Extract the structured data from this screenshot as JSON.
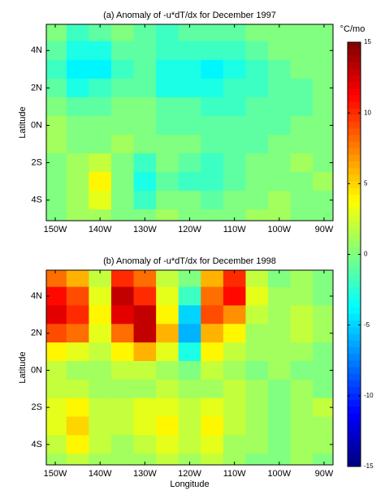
{
  "chart_data": [
    {
      "type": "heatmap",
      "title": "(a) Anomaly of -u*dT/dx for December 1997",
      "ylabel": "Latitude",
      "x": [
        -150,
        -145,
        -140,
        -135,
        -130,
        -125,
        -120,
        -115,
        -110,
        -105,
        -100,
        -95,
        -90
      ],
      "y": [
        5,
        4,
        3,
        2,
        1,
        0,
        -1,
        -2,
        -3,
        -4,
        -5
      ],
      "z": [
        [
          0,
          -2,
          -1,
          0,
          -1,
          -2,
          -1,
          -1,
          -1,
          0,
          0,
          0,
          0
        ],
        [
          -1,
          -3,
          -3,
          -1,
          -1,
          -2,
          -2,
          -2,
          -2,
          -1,
          0,
          0,
          0
        ],
        [
          -2,
          -4,
          -4,
          -2,
          -1,
          -3,
          -3,
          -4,
          -3,
          -2,
          -1,
          0,
          0
        ],
        [
          -1,
          -3,
          -2,
          -1,
          -1,
          -3,
          -3,
          -3,
          -2,
          -2,
          -1,
          -1,
          0
        ],
        [
          0,
          -1,
          -1,
          0,
          0,
          -1,
          -1,
          -2,
          -2,
          -1,
          -1,
          -1,
          0
        ],
        [
          1,
          0,
          0,
          0,
          0,
          -1,
          -1,
          -1,
          -1,
          -1,
          -1,
          0,
          0
        ],
        [
          1,
          0,
          0,
          1,
          0,
          0,
          0,
          -1,
          -1,
          -1,
          0,
          0,
          0
        ],
        [
          0,
          1,
          2,
          0,
          -2,
          0,
          -1,
          -2,
          -1,
          0,
          0,
          1,
          0
        ],
        [
          0,
          1,
          4,
          0,
          -3,
          -1,
          -2,
          -2,
          -1,
          0,
          0,
          0,
          1
        ],
        [
          0,
          1,
          3,
          0,
          -2,
          0,
          0,
          -1,
          0,
          0,
          1,
          0,
          0
        ],
        [
          0,
          1,
          1,
          0,
          0,
          1,
          0,
          0,
          0,
          1,
          1,
          0,
          0
        ]
      ],
      "xlim": [
        -152,
        -88
      ],
      "ylim": [
        -5.1,
        5.4
      ],
      "xticks": [
        {
          "value": -150,
          "label": "150W"
        },
        {
          "value": -140,
          "label": "140W"
        },
        {
          "value": -130,
          "label": "130W"
        },
        {
          "value": -120,
          "label": "120W"
        },
        {
          "value": -110,
          "label": "110W"
        },
        {
          "value": -100,
          "label": "100W"
        },
        {
          "value": -90,
          "label": "90W"
        }
      ],
      "yticks": [
        {
          "value": 4,
          "label": "4N"
        },
        {
          "value": 2,
          "label": "2N"
        },
        {
          "value": 0,
          "label": "0N"
        },
        {
          "value": -2,
          "label": "2S"
        },
        {
          "value": -4,
          "label": "4S"
        }
      ]
    },
    {
      "type": "heatmap",
      "title": "(b) Anomaly of -u*dT/dx for December 1998",
      "ylabel": "Latitude",
      "xlabel": "Longitude",
      "x": [
        -150,
        -145,
        -140,
        -135,
        -130,
        -125,
        -120,
        -115,
        -110,
        -105,
        -100,
        -95,
        -90
      ],
      "y": [
        5,
        4,
        3,
        2,
        1,
        0,
        -1,
        -2,
        -3,
        -4,
        -5
      ],
      "z": [
        [
          8,
          6,
          2,
          10,
          8,
          2,
          0,
          6,
          10,
          2,
          0,
          1,
          0
        ],
        [
          11,
          9,
          3,
          13,
          10,
          3,
          -2,
          8,
          11,
          3,
          1,
          1,
          0
        ],
        [
          12,
          10,
          4,
          12,
          13,
          4,
          -5,
          9,
          7,
          2,
          1,
          2,
          1
        ],
        [
          9,
          8,
          3,
          8,
          13,
          6,
          -6,
          6,
          4,
          1,
          1,
          2,
          1
        ],
        [
          4,
          3,
          2,
          4,
          6,
          3,
          -3,
          4,
          2,
          1,
          1,
          1,
          0
        ],
        [
          2,
          1,
          1,
          2,
          2,
          1,
          0,
          2,
          1,
          0,
          1,
          0,
          0
        ],
        [
          2,
          2,
          1,
          1,
          1,
          2,
          1,
          1,
          2,
          1,
          0,
          1,
          0
        ],
        [
          3,
          4,
          2,
          2,
          3,
          3,
          2,
          3,
          2,
          1,
          0,
          1,
          2
        ],
        [
          3,
          5,
          2,
          2,
          3,
          4,
          2,
          4,
          2,
          1,
          0,
          1,
          1
        ],
        [
          2,
          4,
          2,
          1,
          2,
          3,
          2,
          3,
          1,
          1,
          0,
          1,
          1
        ],
        [
          1,
          2,
          1,
          1,
          1,
          2,
          1,
          2,
          1,
          0,
          0,
          1,
          0
        ]
      ],
      "xlim": [
        -152,
        -88
      ],
      "ylim": [
        -5.1,
        5.4
      ],
      "xticks": [
        {
          "value": -150,
          "label": "150W"
        },
        {
          "value": -140,
          "label": "140W"
        },
        {
          "value": -130,
          "label": "130W"
        },
        {
          "value": -120,
          "label": "120W"
        },
        {
          "value": -110,
          "label": "110W"
        },
        {
          "value": -100,
          "label": "100W"
        },
        {
          "value": -90,
          "label": "90W"
        }
      ],
      "yticks": [
        {
          "value": 4,
          "label": "4N"
        },
        {
          "value": 2,
          "label": "2N"
        },
        {
          "value": 0,
          "label": "0N"
        },
        {
          "value": -2,
          "label": "2S"
        },
        {
          "value": -4,
          "label": "4S"
        }
      ]
    }
  ],
  "colorbar": {
    "colormap": "jet",
    "clim": [
      -15,
      15
    ],
    "ticks": [
      -15,
      -10,
      -5,
      0,
      5,
      10,
      15
    ],
    "unit": "°C/mo"
  }
}
